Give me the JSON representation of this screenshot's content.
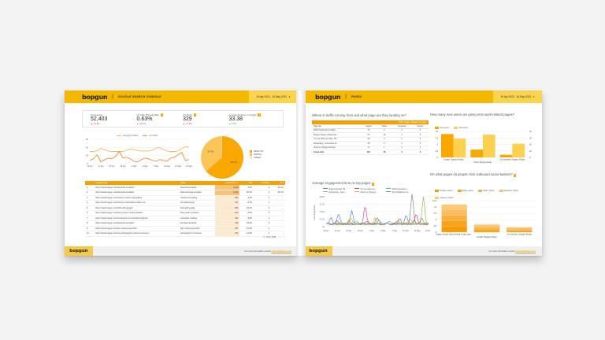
{
  "left_page": {
    "brand": "bopgun",
    "title": "GOOGLE SEARCH CONSOLE",
    "date_range": "19 Apr 2023 - 16 May 2023",
    "scorecards": [
      {
        "label": "Impressions",
        "value": "52,403",
        "delta": "▲ -10.8%",
        "trend": "neg",
        "help": false
      },
      {
        "label": "Url Click Through Rate",
        "value": "0.63%",
        "delta": "▲ -19.1%",
        "trend": "neg",
        "help": true
      },
      {
        "label": "Url Clicks",
        "value": "329",
        "delta": "▲ -37.5%",
        "trend": "neg",
        "help": true
      },
      {
        "label": "Average Position on Google",
        "value": "33.38",
        "delta": "▲ 1.0%",
        "trend": "pos",
        "help": true
      }
    ],
    "table": {
      "headers": [
        "",
        "Landing Page",
        "Query",
        "Impressions ▼",
        "% Δ",
        "Url Clicks",
        "% Δ"
      ],
      "rows": [
        [
          "1.",
          "https://www.bopgun.com/facebook-template/",
          "facebook template",
          "3,019",
          "-3.3%",
          "6",
          "-20.0%"
        ],
        [
          "2.",
          "https://www.bopgun.com/facebook-template/",
          "facebook page template",
          "1,206",
          "-50.5%",
          "2",
          "-66.7%"
        ],
        [
          "3.",
          "https://www.bopgun.com/what-is-creative-storytelling/",
          "creative storytelling",
          "808",
          "-9.4%",
          "1",
          "-"
        ],
        [
          "4.",
          "https://www.bopgun.com/intrusive-interstitials-mobile-seo/",
          "interstitial popup",
          "781",
          "-0.3%",
          "1",
          "-"
        ],
        [
          "5.",
          "https://www.bopgun.com/think-with-google/",
          "think with google",
          "650",
          "-52.1%",
          "0",
          "-"
        ],
        [
          "6.",
          "https://www.bopgun.com/harry-potter-creature-feature/",
          "harry potter creatures",
          "610",
          "-2.5%",
          "0",
          "-"
        ],
        [
          "7.",
          "https://www.bopgun.com/importance-of-competitor-analysis/",
          "competitor tracking",
          "492",
          "-9.8%",
          "0",
          "-"
        ],
        [
          "8.",
          "https://www.bopgun.com/facebook-template/",
          "template facebook",
          "415",
          "-19.6%",
          "0",
          "-"
        ],
        [
          "9.",
          "https://www.bopgun.com/low-volume-keywords/",
          "high volume keywords",
          "387",
          "-15.4%",
          "0",
          "-"
        ],
        [
          "10.",
          "https://www.bopgun.com/use-ethnography-improve-business/",
          "ethnography in business",
          "379",
          "-12.5%",
          "0",
          "-"
        ]
      ],
      "pagination": "1 - 100 / 3148"
    },
    "footer_text": "For more information contact",
    "footer_link": "support@bopgun.com"
  },
  "right_page": {
    "brand": "bopgun",
    "title": "PAGES",
    "date_range": "19 Apr 2023 - 16 May 2023",
    "traffic_title": "Where is traffic coming from and what page are they landing on?",
    "traffic_table": {
      "band_label": "Traffic source / Sessions on page",
      "headers": [
        "Page title",
        "organic",
        "Twitter",
        "Facebook",
        "linkedin"
      ],
      "rows": [
        [
          "Which Facebook template...",
          "79",
          "0",
          "0",
          "0"
        ],
        [
          "Bopgun Design | Brand bas...",
          "57",
          "16",
          "1",
          "0"
        ],
        [
          "You are what you draw - Bo...",
          "60",
          "0",
          "0",
          "0"
        ],
        [
          "Rebranding - Successes an...",
          "38",
          "0",
          "0",
          "0"
        ],
        [
          "About us | Bopgun Design",
          "17",
          "1",
          "1",
          "1"
        ]
      ],
      "total": [
        "Grand total",
        "601",
        "19",
        "6",
        "6"
      ]
    },
    "engagement_title": "Average engagement time on top pages",
    "footer_text": "For more information contact",
    "footer_link": "support@bopgun.com",
    "new_users_title": "How many new users are going onto work-related pages?",
    "social_title": "On what pages do people click outbound social buttons?"
  },
  "chart_data": [
    {
      "type": "line",
      "title": "",
      "series": [
        {
          "name": "Average Position",
          "color": "#f7b955",
          "values": [
            30,
            30,
            32,
            38,
            34,
            31,
            30,
            30,
            30,
            30,
            33,
            36,
            35,
            32,
            31,
            31,
            31,
            33,
            38,
            40,
            35,
            31,
            30,
            30,
            31,
            37,
            42,
            40
          ]
        },
        {
          "name": "Url Clicks",
          "color": "#f08c3c",
          "values": [
            8,
            12,
            22,
            4,
            10,
            14,
            12,
            18,
            30,
            14,
            16,
            12,
            6,
            4,
            10,
            14,
            12,
            8,
            6,
            10,
            8,
            6,
            14,
            16,
            22,
            28,
            8,
            10
          ]
        }
      ],
      "x": [
        "19 Apr",
        "22 Apr",
        "25 Apr",
        "28 Apr",
        "1 May",
        "4 May",
        "7 May",
        "10 May",
        "13 May",
        "16 May"
      ],
      "ylim": [
        0,
        60
      ],
      "yticks": [
        0,
        20,
        40,
        60
      ]
    },
    {
      "type": "pie",
      "categories": [
        "DESKTOP",
        "MOBILE",
        "TABLET"
      ],
      "values": [
        63.7,
        35.7,
        0.6
      ],
      "colors": [
        "#f8a800",
        "#fbc558",
        "#fde1a6"
      ]
    },
    {
      "type": "line",
      "title": "Average engagement time on top pages",
      "ylabel": "User engagement",
      "x": [
        "19 Apr",
        "22 Apr",
        "25 Apr",
        "28 Apr",
        "1 May",
        "4 May",
        "7 May",
        "10 May",
        "13 May",
        "16 May"
      ],
      "yticks": [
        "0s",
        "07:00",
        "14:00",
        "21:00",
        "28:00"
      ],
      "series": [
        {
          "name": "Bopgun Design | Br...",
          "color": "#4a90e2"
        },
        {
          "name": "You are what you...",
          "color": "#e83ea8"
        },
        {
          "name": "Which Facebook t...",
          "color": "#3ec6d6"
        },
        {
          "name": "Rebranding - Succ...",
          "color": "#8bc34a"
        },
        {
          "name": "About us | Bopgun...",
          "color": "#f5a623"
        },
        {
          "name": "Why Publishers Ca...",
          "color": "#888888"
        }
      ]
    },
    {
      "type": "bar",
      "title": "How many new users are going onto work-related pages?",
      "categories": [
        "Contact | Bopgun Design",
        "Work | Bopgun Design",
        "Our expertise | Bopgun Design"
      ],
      "series": [
        {
          "name": "New users",
          "color": "#f8a800",
          "values": [
            9,
            3,
            1
          ],
          "axis": "left"
        },
        {
          "name": "Total users",
          "color": "#fdd050",
          "values": [
            29,
            35,
            21
          ],
          "axis": "right"
        }
      ],
      "ylim_left": [
        0,
        10
      ],
      "yticks_left": [
        0,
        2.5,
        5,
        7.5,
        10
      ],
      "ylim_right": [
        0,
        40
      ],
      "yticks_right": [
        0,
        10,
        20,
        30,
        40
      ]
    },
    {
      "type": "bar",
      "title": "On what pages do people click outbound social buttons?",
      "categories": [
        "Bopgun Design | Brand based Design Agen...",
        "Contact | Bopgun Design",
        "Our expertise | Bopgun Design"
      ],
      "series": [
        {
          "name": "linkedin_button",
          "color": "#f59a00"
        },
        {
          "name": "tiktok_button",
          "color": "#f7a21a"
        },
        {
          "name": "twitter_button",
          "color": "#f9b040"
        },
        {
          "name": "facebook_button",
          "color": "#fbbd5e"
        },
        {
          "name": "pinterest_button",
          "color": "#fcc97a"
        }
      ],
      "totals": [
        11,
        3,
        2
      ],
      "ylim": [
        0,
        12.5
      ],
      "yticks": [
        0,
        2.5,
        5,
        7.5,
        10,
        12.5
      ]
    }
  ]
}
